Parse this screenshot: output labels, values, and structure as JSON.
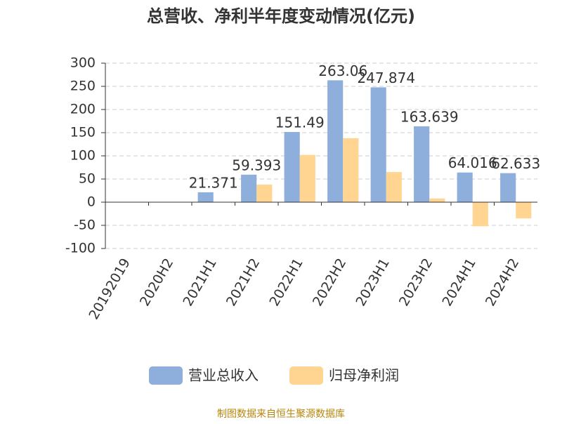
{
  "chart_data": {
    "type": "bar",
    "title": "总营收、净利半年度变动情况(亿元)",
    "categories": [
      "20192019",
      "2020H2",
      "2021H1",
      "2021H2",
      "2022H1",
      "2022H2",
      "2023H1",
      "2023H2",
      "2024H1",
      "2024H2"
    ],
    "series": [
      {
        "name": "营业总收入",
        "color": "#8eaedb",
        "values": [
          null,
          null,
          21.371,
          59.393,
          151.49,
          263.06,
          247.874,
          163.639,
          64.016,
          62.633
        ],
        "show_labels": true
      },
      {
        "name": "归母净利润",
        "color": "#ffd591",
        "values": [
          null,
          null,
          null,
          38,
          102,
          138,
          65,
          8,
          -52,
          -35
        ],
        "show_labels": false
      }
    ],
    "ylim": [
      -100,
      300
    ],
    "yticks": [
      -100,
      -50,
      0,
      50,
      100,
      150,
      200,
      250,
      300
    ],
    "grid": true,
    "legend": "bottom",
    "footer": "制图数据来自恒生聚源数据库"
  }
}
